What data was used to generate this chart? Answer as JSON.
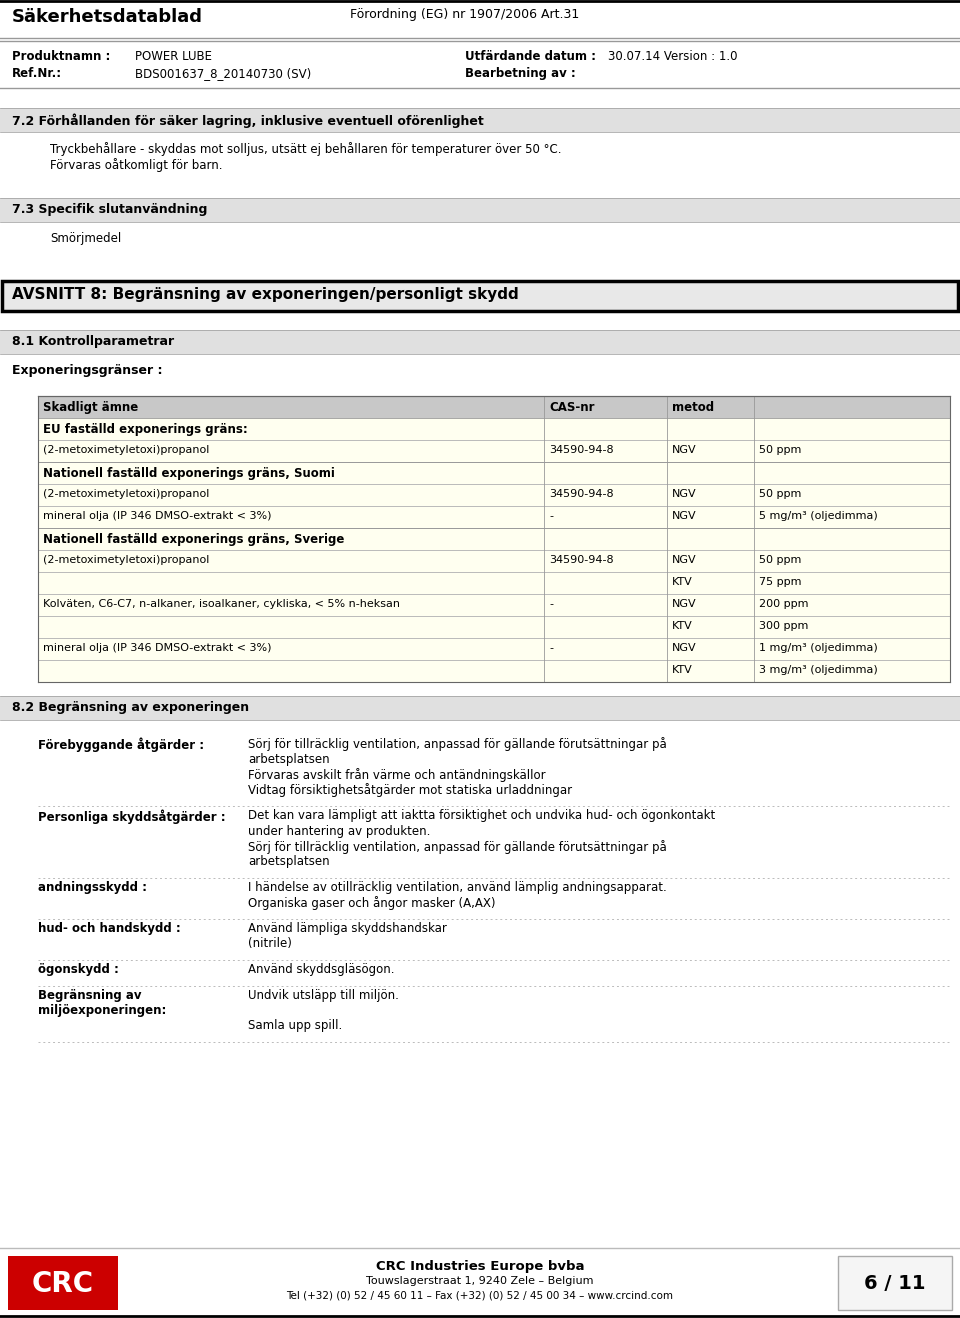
{
  "page_width": 9.6,
  "page_height": 13.18,
  "bg_color": "#ffffff",
  "header_title_left": "Säkerhetsdatablad",
  "header_title_right": "Förordning (EG) nr 1907/2006 Art.31",
  "product_label": "Produktnamn :",
  "product_value": "POWER LUBE",
  "ref_label": "Ref.Nr.:",
  "ref_value": "BDS001637_8_20140730 (SV)",
  "date_label": "Utfärdande datum :",
  "date_value": "30.07.14 Version : 1.0",
  "bearbetning_label": "Bearbetning av :",
  "section72_title": "7.2 Förhållanden för säker lagring, inklusive eventuell oförenlighet",
  "section72_text1": "Tryckbehållare - skyddas mot solljus, utsätt ej behållaren för temperaturer över 50 °C.",
  "section72_text2": "Förvaras oåtkomligt för barn.",
  "section73_title": "7.3 Specifik slutanvändning",
  "section73_text": "Smörjmedel",
  "section8_title": "AVSNITT 8: Begränsning av exponeringen/personligt skydd",
  "section81_title": "8.1 Kontrollparametrar",
  "exp_title": "Exponeringsgränser :",
  "table_header": [
    "Skadligt ämne",
    "CAS-nr",
    "metod",
    ""
  ],
  "table_row_color_header": "#c8c8c8",
  "table_row_color_yellow": "#fffff0",
  "table_rows": [
    {
      "type": "section_header",
      "col1": "EU faställd exponerings gräns:",
      "col2": "",
      "col3": "",
      "col4": ""
    },
    {
      "type": "data",
      "col1": "(2-metoximetyletoxi)propanol",
      "col2": "34590-94-8",
      "col3": "NGV",
      "col4": "50 ppm"
    },
    {
      "type": "section_header",
      "col1": "Nationell faställd exponerings gräns, Suomi",
      "col2": "",
      "col3": "",
      "col4": ""
    },
    {
      "type": "data",
      "col1": "(2-metoximetyletoxi)propanol",
      "col2": "34590-94-8",
      "col3": "NGV",
      "col4": "50 ppm"
    },
    {
      "type": "data",
      "col1": "mineral olja (IP 346 DMSO-extrakt < 3%)",
      "col2": "-",
      "col3": "NGV",
      "col4": "5 mg/m³ (oljedimma)"
    },
    {
      "type": "section_header",
      "col1": "Nationell faställd exponerings gräns, Sverige",
      "col2": "",
      "col3": "",
      "col4": ""
    },
    {
      "type": "data",
      "col1": "(2-metoximetyletoxi)propanol",
      "col2": "34590-94-8",
      "col3": "NGV",
      "col4": "50 ppm"
    },
    {
      "type": "data",
      "col1": "",
      "col2": "",
      "col3": "KTV",
      "col4": "75 ppm"
    },
    {
      "type": "data",
      "col1": "Kolväten, C6-C7, n-alkaner, isoalkaner, cykliska, < 5% n-heksan",
      "col2": "-",
      "col3": "NGV",
      "col4": "200 ppm"
    },
    {
      "type": "data",
      "col1": "",
      "col2": "",
      "col3": "KTV",
      "col4": "300 ppm"
    },
    {
      "type": "data",
      "col1": "mineral olja (IP 346 DMSO-extrakt < 3%)",
      "col2": "-",
      "col3": "NGV",
      "col4": "1 mg/m³ (oljedimma)"
    },
    {
      "type": "data",
      "col1": "",
      "col2": "",
      "col3": "KTV",
      "col4": "3 mg/m³ (oljedimma)"
    }
  ],
  "section82_title": "8.2 Begränsning av exponeringen",
  "section82_rows": [
    {
      "label": "Förebyggande åtgärder :",
      "text": "Sörj för tillräcklig ventilation, anpassad för gällande förutsättningar på\narbetsplatsen\nFörvaras avskilt från värme och antändningskällor\nVidtag försiktighetsåtgärder mot statiska urladdningar"
    },
    {
      "label": "Personliga skyddsåtgärder :",
      "text": "Det kan vara lämpligt att iaktta försiktighet och undvika hud- och ögonkontakt\nunder hantering av produkten.\nSörj för tillräcklig ventilation, anpassad för gällande förutsättningar på\narbetsplatsen"
    },
    {
      "label": "andningsskydd :",
      "text": "I händelse av otillräcklig ventilation, använd lämplig andningsapparat.\nOrganiska gaser och ångor masker (A,AX)"
    },
    {
      "label": "hud- och handskydd :",
      "text": "Använd lämpliga skyddshandskar\n(nitrile)"
    },
    {
      "label": "ögonskydd :",
      "text": "Använd skyddsgläsögon."
    },
    {
      "label": "Begränsning av\nmiljöexponeringen:",
      "text": "Undvik utsläpp till miljön.\n\nSamla upp spill."
    }
  ],
  "footer_logo_text": "CRC",
  "footer_company": "CRC Industries Europe bvba",
  "footer_address": "Touwslagerstraat 1, 9240 Zele – Belgium",
  "footer_phone": "Tel (+32) (0) 52 / 45 60 11 – Fax (+32) (0) 52 / 45 00 34 – www.crcind.com",
  "footer_page": "6 / 11",
  "section_bg": "#e0e0e0",
  "section8_border_color": "#000000",
  "section8_bg": "#e8e8e8"
}
